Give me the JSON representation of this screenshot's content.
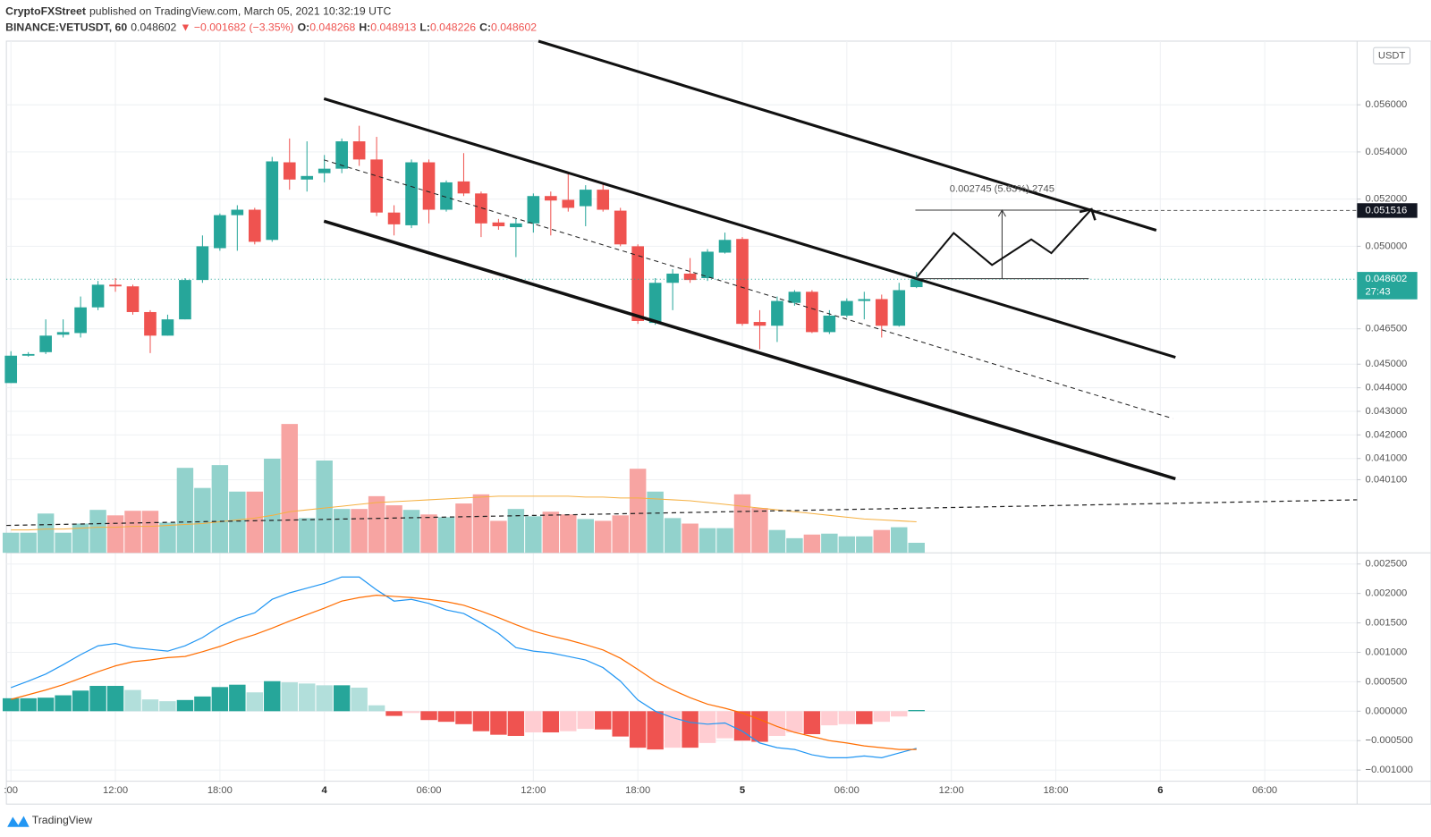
{
  "header": {
    "author": "CryptoFXStreet",
    "published": "published on TradingView.com, March 05, 2021 10:32:19 UTC",
    "symbol": "BINANCE:VETUSDT, 60",
    "change": "▼ −0.001682 (−3.35%)",
    "o_label": "O:",
    "h_label": "H:",
    "l_label": "L:",
    "c_label": "C:"
  },
  "footer": {
    "brand": "TradingView"
  },
  "chart_data": {
    "type": "candlestick",
    "x": [
      0,
      1,
      2,
      3,
      4,
      5,
      6,
      7,
      8,
      9,
      10,
      11,
      12,
      13,
      14,
      15,
      16,
      17,
      18,
      19,
      20,
      21,
      22,
      23,
      24,
      25,
      26,
      27,
      28,
      29,
      30,
      31,
      32,
      33,
      34,
      35,
      36,
      37,
      38,
      39,
      40,
      41,
      42,
      43,
      44,
      45,
      46,
      47,
      48,
      49,
      50,
      51,
      52
    ],
    "xlim": [
      -0.26,
      77.3
    ],
    "xticks": [
      {
        "value": 0,
        "label": ":00"
      },
      {
        "value": 6,
        "label": "12:00"
      },
      {
        "value": 12,
        "label": "18:00"
      },
      {
        "value": 18,
        "label": "4"
      },
      {
        "value": 24,
        "label": "06:00"
      },
      {
        "value": 30,
        "label": "12:00"
      },
      {
        "value": 36,
        "label": "18:00"
      },
      {
        "value": 42,
        "label": "5"
      },
      {
        "value": 48,
        "label": "06:00"
      },
      {
        "value": 54,
        "label": "12:00"
      },
      {
        "value": 60,
        "label": "18:00"
      },
      {
        "value": 66,
        "label": "6"
      },
      {
        "value": 72,
        "label": "06:00"
      }
    ],
    "ylim": [
      0.037,
      0.0587
    ],
    "yticks": [
      {
        "value": 0.056,
        "label": "0.056000"
      },
      {
        "value": 0.054,
        "label": "0.054000"
      },
      {
        "value": 0.052,
        "label": "0.052000"
      },
      {
        "value": 0.05,
        "label": "0.050000"
      },
      {
        "value": 0.0465,
        "label": "0.046500"
      },
      {
        "value": 0.045,
        "label": "0.045000"
      },
      {
        "value": 0.044,
        "label": "0.044000"
      },
      {
        "value": 0.043,
        "label": "0.043000"
      },
      {
        "value": 0.042,
        "label": "0.042000"
      },
      {
        "value": 0.041,
        "label": "0.041000"
      },
      {
        "value": 0.0401,
        "label": "0.040100"
      }
    ],
    "grid": true,
    "up_color": "#26a69a",
    "down_color": "#ef5350",
    "open": [
      0.0442,
      0.04536,
      0.04551,
      0.04625,
      0.04632,
      0.04741,
      0.04837,
      0.0483,
      0.04721,
      0.04621,
      0.0469,
      0.04857,
      0.04992,
      0.05132,
      0.05155,
      0.05027,
      0.05356,
      0.05283,
      0.0531,
      0.05329,
      0.05445,
      0.05368,
      0.05143,
      0.05089,
      0.05356,
      0.05155,
      0.05275,
      0.05224,
      0.05101,
      0.05081,
      0.05097,
      0.05213,
      0.05197,
      0.0517,
      0.0524,
      0.05151,
      0.05,
      0.04675,
      0.04845,
      0.04884,
      0.04865,
      0.04973,
      0.05031,
      0.04679,
      0.04663,
      0.0476,
      0.04807,
      0.04636,
      0.04706,
      0.04768,
      0.04776,
      0.04663,
      0.048268
    ],
    "high": [
      0.04555,
      0.04551,
      0.0469,
      0.0469,
      0.04787,
      0.04853,
      0.04865,
      0.04837,
      0.04729,
      0.0471,
      0.04865,
      0.05046,
      0.05139,
      0.05174,
      0.05163,
      0.05379,
      0.05457,
      0.05445,
      0.05387,
      0.05457,
      0.05511,
      0.05464,
      0.05174,
      0.05368,
      0.05368,
      0.05279,
      0.05395,
      0.05232,
      0.05116,
      0.05116,
      0.05224,
      0.05232,
      0.0531,
      0.05259,
      0.05271,
      0.05163,
      0.05008,
      0.04865,
      0.04903,
      0.0495,
      0.04988,
      0.05058,
      0.05039,
      0.04729,
      0.04787,
      0.04814,
      0.04814,
      0.04729,
      0.04779,
      0.04807,
      0.04795,
      0.04845,
      0.048913
    ],
    "low": [
      0.0442,
      0.04532,
      0.04543,
      0.04613,
      0.04613,
      0.04729,
      0.04807,
      0.0471,
      0.04547,
      0.04621,
      0.0469,
      0.04845,
      0.04981,
      0.04981,
      0.05008,
      0.05019,
      0.0524,
      0.05232,
      0.05271,
      0.0531,
      0.05341,
      0.05128,
      0.05046,
      0.05077,
      0.05097,
      0.05147,
      0.05213,
      0.05039,
      0.0507,
      0.04954,
      0.05058,
      0.05046,
      0.05147,
      0.05085,
      0.05147,
      0.05,
      0.04671,
      0.04667,
      0.04729,
      0.04845,
      0.04853,
      0.04969,
      0.04663,
      0.04563,
      0.04594,
      0.04748,
      0.04632,
      0.04628,
      0.04698,
      0.0469,
      0.04613,
      0.04659,
      0.048226
    ],
    "close": [
      0.04536,
      0.04543,
      0.04621,
      0.04636,
      0.04741,
      0.04837,
      0.0483,
      0.04721,
      0.04621,
      0.0469,
      0.04857,
      0.05,
      0.05132,
      0.05155,
      0.05019,
      0.0536,
      0.05283,
      0.05298,
      0.05329,
      0.05445,
      0.05368,
      0.05143,
      0.05093,
      0.05356,
      0.05155,
      0.05271,
      0.05224,
      0.05097,
      0.05085,
      0.05097,
      0.05213,
      0.05194,
      0.05163,
      0.0524,
      0.05155,
      0.05008,
      0.04683,
      0.04845,
      0.04884,
      0.04857,
      0.04977,
      0.05027,
      0.04671,
      0.04663,
      0.04768,
      0.04807,
      0.04636,
      0.04706,
      0.04768,
      0.04776,
      0.04663,
      0.04814,
      0.048602
    ],
    "volume": {
      "up_color": "#92d2cc",
      "down_color": "#f7a4a2",
      "ma_color": "#f5b041",
      "values": [
        22,
        22,
        43,
        22,
        32,
        47,
        41,
        46,
        46,
        33,
        93,
        71,
        96,
        67,
        67,
        103,
        141,
        38,
        101,
        48,
        48,
        62,
        52,
        47,
        42,
        39,
        54,
        64,
        35,
        48,
        40,
        45,
        42,
        37,
        35,
        41,
        92,
        67,
        38,
        32,
        27,
        27,
        64,
        49,
        25,
        16,
        20,
        21,
        18,
        18,
        25,
        28,
        11
      ],
      "ma": [
        25,
        25,
        26,
        26,
        27,
        28,
        28,
        29,
        29,
        30,
        31,
        32,
        34,
        36,
        38,
        41,
        45,
        47,
        49,
        51,
        53,
        55,
        56,
        57,
        58,
        59,
        60,
        61,
        62,
        62,
        62,
        62,
        62,
        61,
        61,
        60,
        60,
        59,
        58,
        57,
        55,
        53,
        51,
        49,
        47,
        45,
        43,
        41,
        39,
        37,
        36,
        35,
        34
      ]
    },
    "macd": {
      "ylim": [
        -0.00119,
        0.00269
      ],
      "yticks": [
        {
          "value": 0.0025,
          "label": "0.002500"
        },
        {
          "value": 0.002,
          "label": "0.002000"
        },
        {
          "value": 0.0015,
          "label": "0.001500"
        },
        {
          "value": 0.001,
          "label": "0.001000"
        },
        {
          "value": 0.0005,
          "label": "0.000500"
        },
        {
          "value": 0,
          "label": "0.000000"
        },
        {
          "value": -0.0005,
          "label": "−0.000500"
        },
        {
          "value": -0.001,
          "label": "−0.001000"
        }
      ],
      "macd_line": {
        "color": "#2196f3",
        "values": [
          0.0004,
          0.00051,
          0.00063,
          0.00079,
          0.00096,
          0.00111,
          0.00115,
          0.00108,
          0.00105,
          0.00102,
          0.00111,
          0.00125,
          0.00144,
          0.00158,
          0.00167,
          0.0019,
          0.00201,
          0.00209,
          0.00217,
          0.00228,
          0.00228,
          0.00206,
          0.00187,
          0.0019,
          0.00183,
          0.00172,
          0.00166,
          0.0015,
          0.00132,
          0.00108,
          0.00102,
          0.00099,
          0.00093,
          0.00087,
          0.00074,
          0.00051,
          0.00019,
          0,
          -0.00011,
          -0.00019,
          -0.00022,
          -0.0002,
          -0.00034,
          -0.00054,
          -0.00062,
          -0.00065,
          -0.00074,
          -0.00079,
          -0.00079,
          -0.00076,
          -0.00079,
          -0.00071,
          -0.00063
        ]
      },
      "signal_line": {
        "color": "#ff6d00",
        "values": [
          0.0002,
          0.00028,
          0.00036,
          0.00045,
          0.00056,
          0.00067,
          0.00077,
          0.00084,
          0.00087,
          0.00091,
          0.00093,
          0.00101,
          0.0011,
          0.00121,
          0.0013,
          0.00141,
          0.00153,
          0.00164,
          0.00175,
          0.00187,
          0.00193,
          0.00197,
          0.00195,
          0.00193,
          0.0019,
          0.00186,
          0.0018,
          0.0017,
          0.00159,
          0.00147,
          0.00136,
          0.00128,
          0.00121,
          0.00113,
          0.00104,
          0.0009,
          0.00071,
          0.00051,
          0.00036,
          0.00023,
          0.00012,
          5e-05,
          -3e-05,
          -0.00014,
          -0.00026,
          -0.00036,
          -0.00043,
          -0.0005,
          -0.00054,
          -0.00059,
          -0.00062,
          -0.00065,
          -0.00065
        ]
      },
      "histogram": {
        "colors": {
          "up_strong": "#26a69a",
          "up_weak": "#b2dfdb",
          "down_strong": "#ef5350",
          "down_weak": "#ffcdd2"
        },
        "values": [
          0.00022,
          0.00022,
          0.00023,
          0.00027,
          0.00035,
          0.00043,
          0.00043,
          0.00036,
          0.0002,
          0.00017,
          0.00019,
          0.00025,
          0.00041,
          0.00045,
          0.00032,
          0.00051,
          0.00049,
          0.00047,
          0.00044,
          0.00044,
          0.0004,
          0.0001,
          -8e-05,
          -3e-05,
          -0.00015,
          -0.00018,
          -0.00022,
          -0.00034,
          -0.0004,
          -0.00042,
          -0.00036,
          -0.00036,
          -0.00034,
          -0.0003,
          -0.00031,
          -0.00043,
          -0.00062,
          -0.00065,
          -0.00062,
          -0.00062,
          -0.00054,
          -0.00046,
          -0.0005,
          -0.00052,
          -0.00042,
          -0.00036,
          -0.00039,
          -0.00024,
          -0.00022,
          -0.00022,
          -0.00018,
          -9e-05,
          2e-05
        ]
      }
    },
    "price_labels": {
      "currency": "USDT",
      "target": 0.051516,
      "countdown": "27:43"
    },
    "annotations": {
      "measure": "0.002745 (5.63%) 2745"
    }
  }
}
